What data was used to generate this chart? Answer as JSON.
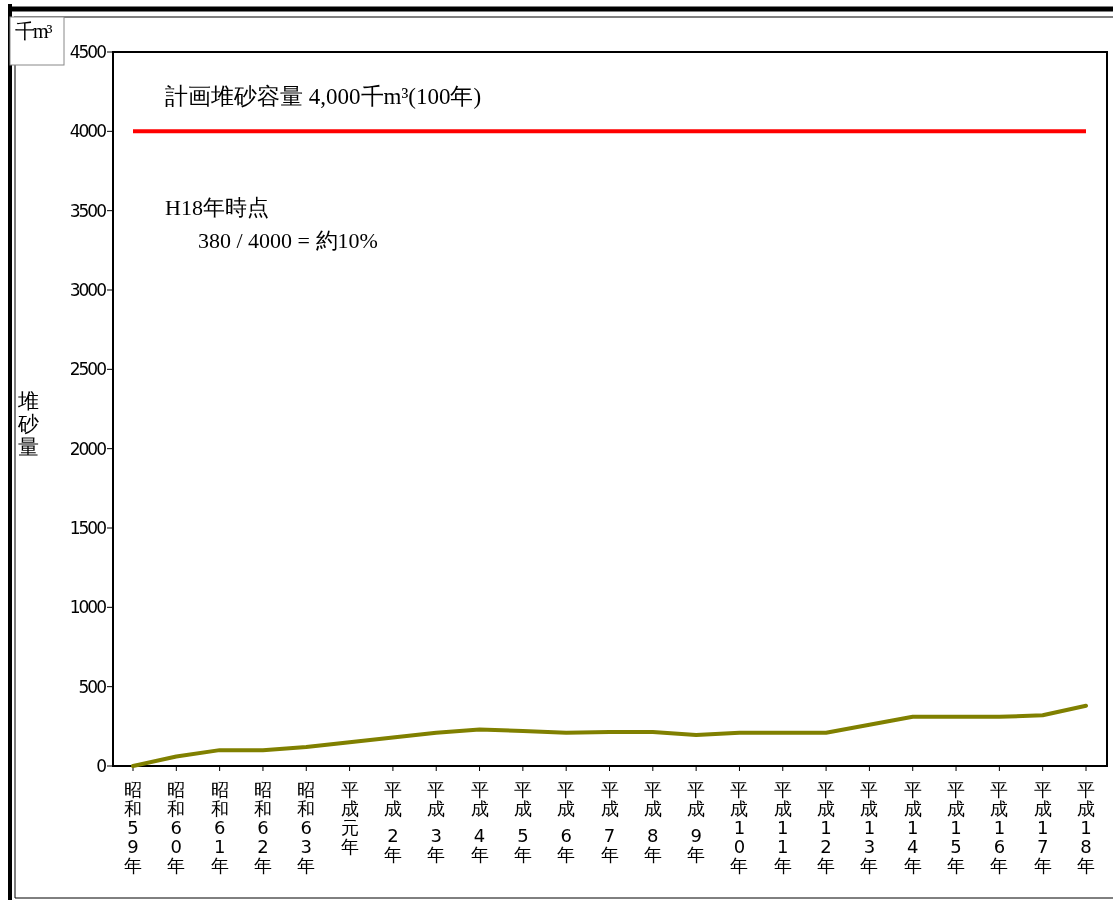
{
  "chart_data": {
    "type": "line",
    "categories": [
      "昭和59年",
      "昭和60年",
      "昭和61年",
      "昭和62年",
      "昭和63年",
      "平成元年",
      "平成 2年",
      "平成 3年",
      "平成 4年",
      "平成 5年",
      "平成 6年",
      "平成 7年",
      "平成 8年",
      "平成 9年",
      "平成10年",
      "平成11年",
      "平成12年",
      "平成13年",
      "平成14年",
      "平成15年",
      "平成16年",
      "平成17年",
      "平成18年"
    ],
    "series": [
      {
        "color": "#808000",
        "values": [
          0,
          60,
          100,
          100,
          120,
          150,
          180,
          210,
          230,
          220,
          210,
          215,
          215,
          195,
          210,
          210,
          210,
          260,
          310,
          310,
          310,
          320,
          380
        ]
      }
    ],
    "ylabel": "堆砂量",
    "ylim": [
      0,
      4500
    ],
    "yticks": [
      0,
      500,
      1000,
      1500,
      2000,
      2500,
      3000,
      3500,
      4000,
      4500
    ],
    "ref_lines": [
      {
        "axis": "y",
        "value": 4000,
        "label": "計画堆砂容量 4,000千m³(100年)",
        "color": "#ff0000"
      }
    ],
    "annotations": [
      "千m³",
      "H18年時点",
      "380 / 4000 = 約10%"
    ]
  }
}
